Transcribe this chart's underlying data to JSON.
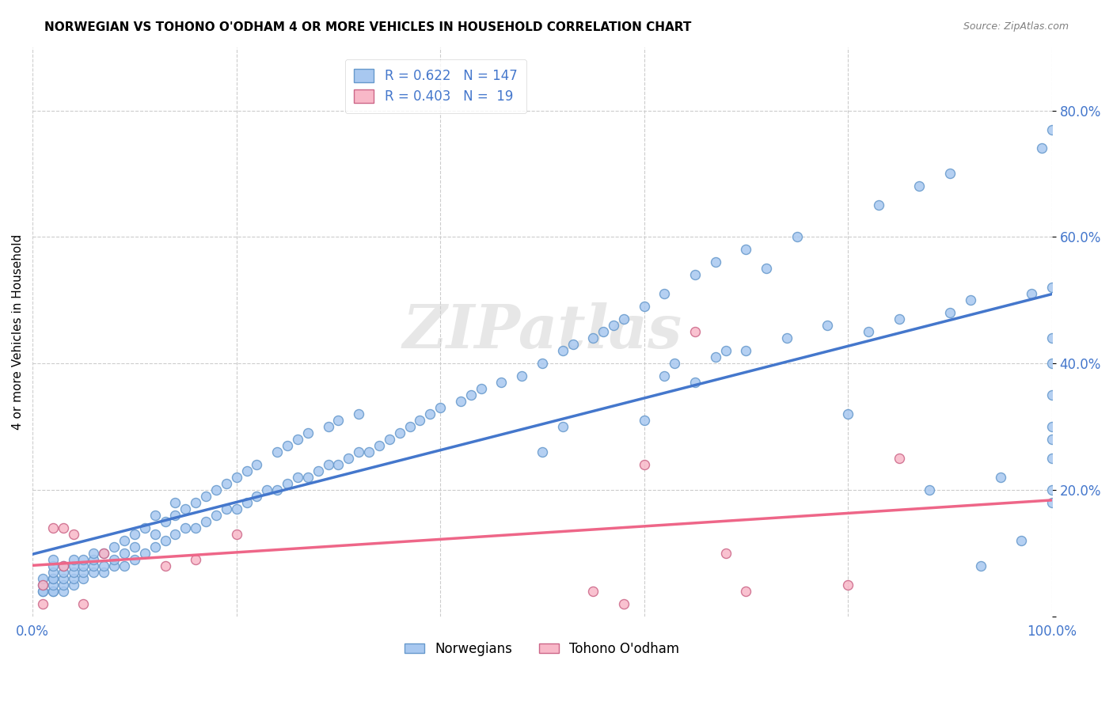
{
  "title": "NORWEGIAN VS TOHONO O'ODHAM 4 OR MORE VEHICLES IN HOUSEHOLD CORRELATION CHART",
  "source": "Source: ZipAtlas.com",
  "ylabel": "4 or more Vehicles in Household",
  "x_min": 0.0,
  "x_max": 1.0,
  "y_min": 0.0,
  "y_max": 0.9,
  "background_color": "#ffffff",
  "grid_color": "#cccccc",
  "norwegian_color": "#a8c8f0",
  "norwegian_edge_color": "#6699cc",
  "tohono_color": "#f8b8c8",
  "tohono_edge_color": "#cc6688",
  "norwegian_line_color": "#4477cc",
  "tohono_line_color": "#ee6688",
  "legend_norwegian_R": "0.622",
  "legend_norwegian_N": "147",
  "legend_tohono_R": "0.403",
  "legend_tohono_N": "19",
  "legend_label_norwegian": "Norwegians",
  "legend_label_tohono": "Tohono O'odham",
  "watermark": "ZIPatlas",
  "norwegian_x": [
    0.01,
    0.01,
    0.01,
    0.01,
    0.02,
    0.02,
    0.02,
    0.02,
    0.02,
    0.02,
    0.02,
    0.02,
    0.03,
    0.03,
    0.03,
    0.03,
    0.03,
    0.04,
    0.04,
    0.04,
    0.04,
    0.04,
    0.05,
    0.05,
    0.05,
    0.05,
    0.06,
    0.06,
    0.06,
    0.06,
    0.07,
    0.07,
    0.07,
    0.08,
    0.08,
    0.08,
    0.09,
    0.09,
    0.09,
    0.1,
    0.1,
    0.1,
    0.11,
    0.11,
    0.12,
    0.12,
    0.12,
    0.13,
    0.13,
    0.14,
    0.14,
    0.14,
    0.15,
    0.15,
    0.16,
    0.16,
    0.17,
    0.17,
    0.18,
    0.18,
    0.19,
    0.19,
    0.2,
    0.2,
    0.21,
    0.21,
    0.22,
    0.22,
    0.23,
    0.24,
    0.24,
    0.25,
    0.25,
    0.26,
    0.26,
    0.27,
    0.27,
    0.28,
    0.29,
    0.29,
    0.3,
    0.3,
    0.31,
    0.32,
    0.32,
    0.33,
    0.34,
    0.35,
    0.36,
    0.37,
    0.38,
    0.39,
    0.4,
    0.42,
    0.43,
    0.44,
    0.46,
    0.48,
    0.5,
    0.5,
    0.52,
    0.52,
    0.53,
    0.55,
    0.56,
    0.57,
    0.58,
    0.6,
    0.6,
    0.62,
    0.62,
    0.63,
    0.65,
    0.65,
    0.67,
    0.67,
    0.68,
    0.7,
    0.7,
    0.72,
    0.74,
    0.75,
    0.78,
    0.8,
    0.82,
    0.83,
    0.85,
    0.87,
    0.88,
    0.9,
    0.9,
    0.92,
    0.93,
    0.95,
    0.97,
    0.98,
    0.99,
    1.0,
    1.0,
    1.0,
    1.0,
    1.0,
    1.0,
    1.0,
    1.0,
    1.0,
    1.0
  ],
  "norwegian_y": [
    0.04,
    0.04,
    0.05,
    0.06,
    0.04,
    0.04,
    0.05,
    0.06,
    0.06,
    0.07,
    0.08,
    0.09,
    0.04,
    0.05,
    0.06,
    0.07,
    0.08,
    0.05,
    0.06,
    0.07,
    0.08,
    0.09,
    0.06,
    0.07,
    0.08,
    0.09,
    0.07,
    0.08,
    0.09,
    0.1,
    0.07,
    0.08,
    0.1,
    0.08,
    0.09,
    0.11,
    0.08,
    0.1,
    0.12,
    0.09,
    0.11,
    0.13,
    0.1,
    0.14,
    0.11,
    0.13,
    0.16,
    0.12,
    0.15,
    0.13,
    0.16,
    0.18,
    0.14,
    0.17,
    0.14,
    0.18,
    0.15,
    0.19,
    0.16,
    0.2,
    0.17,
    0.21,
    0.17,
    0.22,
    0.18,
    0.23,
    0.19,
    0.24,
    0.2,
    0.2,
    0.26,
    0.21,
    0.27,
    0.22,
    0.28,
    0.22,
    0.29,
    0.23,
    0.24,
    0.3,
    0.24,
    0.31,
    0.25,
    0.26,
    0.32,
    0.26,
    0.27,
    0.28,
    0.29,
    0.3,
    0.31,
    0.32,
    0.33,
    0.34,
    0.35,
    0.36,
    0.37,
    0.38,
    0.26,
    0.4,
    0.3,
    0.42,
    0.43,
    0.44,
    0.45,
    0.46,
    0.47,
    0.31,
    0.49,
    0.38,
    0.51,
    0.4,
    0.37,
    0.54,
    0.41,
    0.56,
    0.42,
    0.58,
    0.42,
    0.55,
    0.44,
    0.6,
    0.46,
    0.32,
    0.45,
    0.65,
    0.47,
    0.68,
    0.2,
    0.48,
    0.7,
    0.5,
    0.08,
    0.22,
    0.12,
    0.51,
    0.74,
    0.52,
    0.44,
    0.77,
    0.28,
    0.2,
    0.35,
    0.4,
    0.25,
    0.3,
    0.18
  ],
  "tohono_x": [
    0.01,
    0.01,
    0.02,
    0.03,
    0.03,
    0.04,
    0.05,
    0.07,
    0.13,
    0.16,
    0.2,
    0.55,
    0.58,
    0.6,
    0.65,
    0.68,
    0.7,
    0.8,
    0.85
  ],
  "tohono_y": [
    0.05,
    0.02,
    0.14,
    0.08,
    0.14,
    0.13,
    0.02,
    0.1,
    0.08,
    0.09,
    0.13,
    0.04,
    0.02,
    0.24,
    0.45,
    0.1,
    0.04,
    0.05,
    0.25
  ]
}
